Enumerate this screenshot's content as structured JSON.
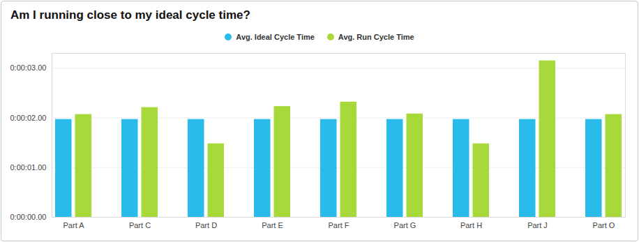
{
  "chart_data": {
    "type": "bar",
    "title": "Am I running close to my ideal cycle time?",
    "categories": [
      "Part A",
      "Part C",
      "Part D",
      "Part E",
      "Part F",
      "Part G",
      "Part H",
      "Part J",
      "Part O"
    ],
    "series": [
      {
        "name": "Avg. Ideal Cycle Time",
        "color": "#29bbea",
        "values": [
          1.97,
          1.97,
          1.97,
          1.97,
          1.97,
          1.97,
          1.97,
          1.97,
          1.97
        ]
      },
      {
        "name": "Avg. Run Cycle Time",
        "color": "#a8d93a",
        "values": [
          2.07,
          2.21,
          1.48,
          2.23,
          2.32,
          2.08,
          1.48,
          3.15,
          2.07
        ]
      }
    ],
    "ylim": [
      0,
      3.3
    ],
    "yticks": [
      {
        "value": 0,
        "label": "0:00:00.00"
      },
      {
        "value": 1,
        "label": "0:00:01.00"
      },
      {
        "value": 2,
        "label": "0:00:02.00"
      },
      {
        "value": 3,
        "label": "0:00:03.00"
      }
    ],
    "grid": true,
    "legend": "top"
  }
}
